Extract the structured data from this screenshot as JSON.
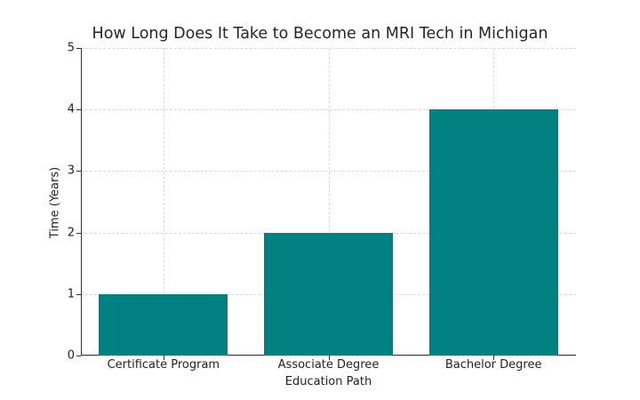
{
  "chart_data": {
    "type": "bar",
    "title": "How Long Does It Take to Become an MRI Tech in Michigan",
    "xlabel": "Education Path",
    "ylabel": "Time (Years)",
    "categories": [
      "Certificate Program",
      "Associate Degree",
      "Bachelor Degree"
    ],
    "values": [
      1,
      2,
      4
    ],
    "ylim": [
      0,
      5
    ],
    "yticks": [
      "0",
      "1",
      "2",
      "3",
      "4",
      "5"
    ],
    "grid": true,
    "legend": null,
    "bar_color": "#008080"
  }
}
